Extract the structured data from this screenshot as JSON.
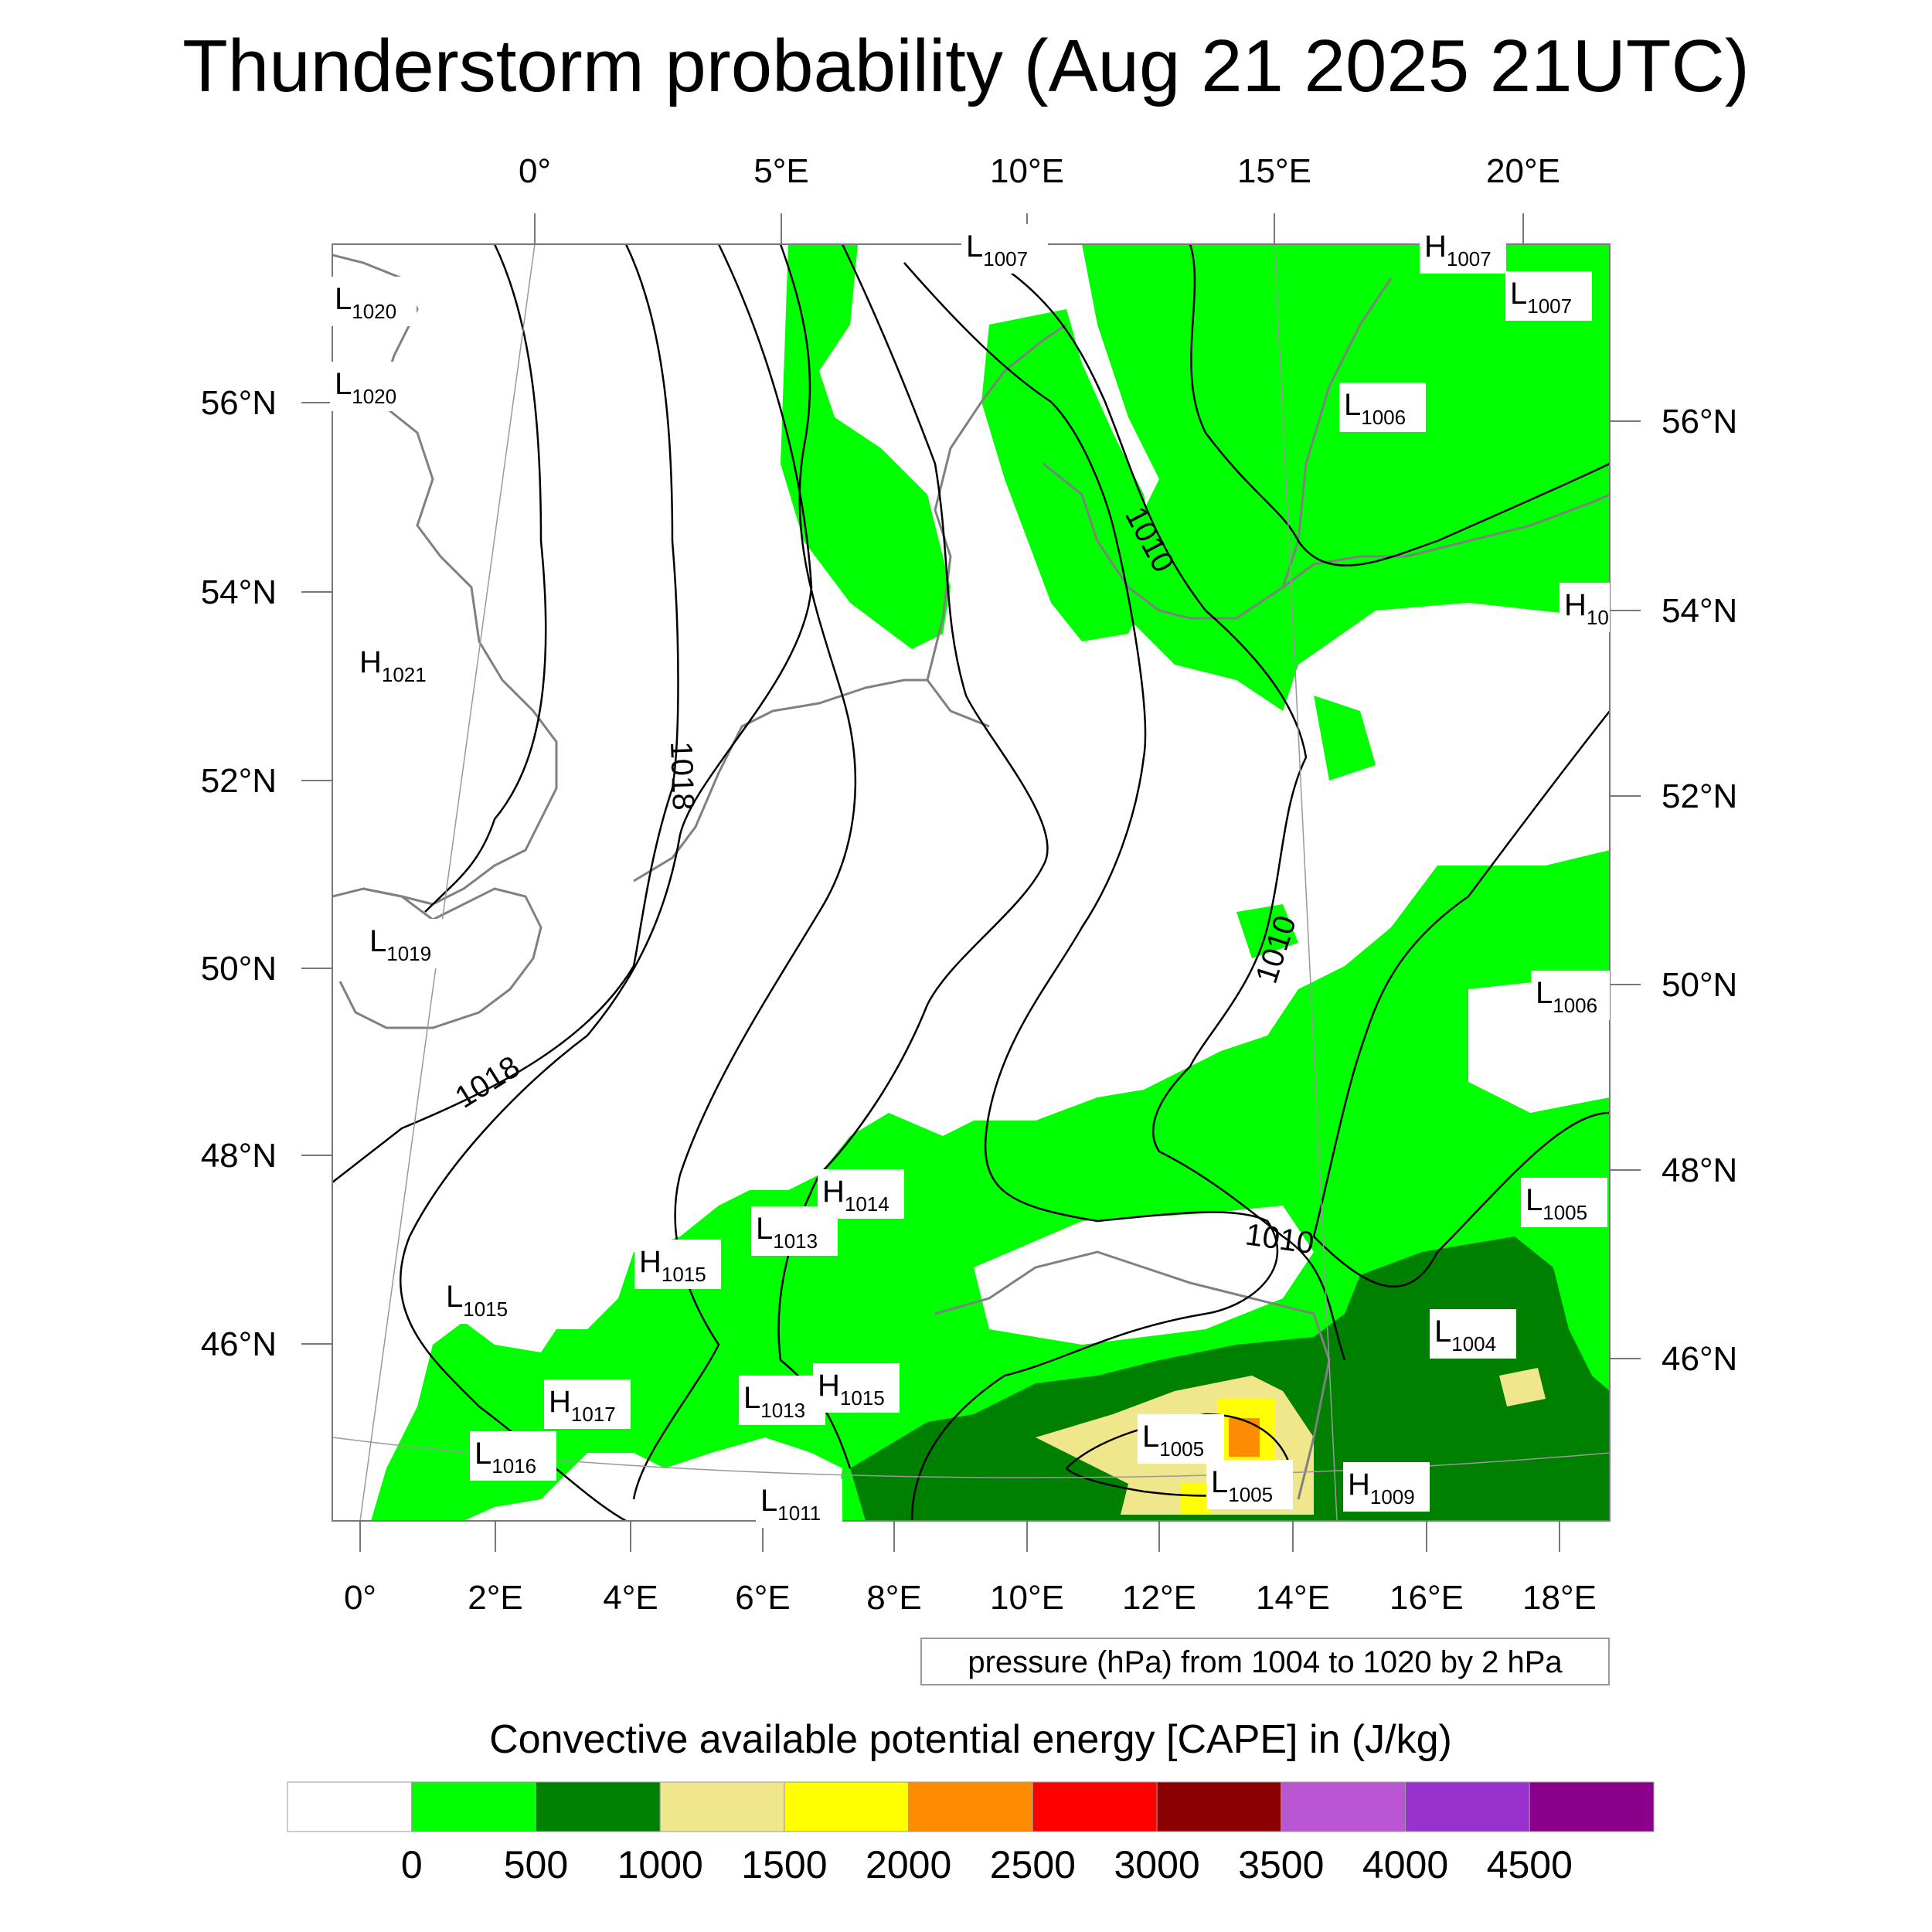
{
  "title": "Thunderstorm probability (Aug 21 2025 21UTC)",
  "top_lon_labels": [
    "0°",
    "5°E",
    "10°E",
    "15°E",
    "20°E"
  ],
  "bottom_lon_labels": [
    "0°",
    "2°E",
    "4°E",
    "6°E",
    "8°E",
    "10°E",
    "12°E",
    "14°E",
    "16°E",
    "18°E"
  ],
  "left_lat_labels": [
    "56°N",
    "54°N",
    "52°N",
    "50°N",
    "48°N",
    "46°N"
  ],
  "right_lat_labels": [
    "56°N",
    "54°N",
    "52°N",
    "50°N",
    "48°N",
    "46°N"
  ],
  "pressure_centers": [
    {
      "type": "L",
      "value": "1020"
    },
    {
      "type": "L",
      "value": "1020"
    },
    {
      "type": "H",
      "value": "1021"
    },
    {
      "type": "L",
      "value": "1019"
    },
    {
      "type": "L",
      "value": "1015"
    },
    {
      "type": "H",
      "value": "1017"
    },
    {
      "type": "L",
      "value": "1016"
    },
    {
      "type": "H",
      "value": "1015"
    },
    {
      "type": "L",
      "value": "1013"
    },
    {
      "type": "H",
      "value": "1014"
    },
    {
      "type": "L",
      "value": "1013"
    },
    {
      "type": "H",
      "value": "1015"
    },
    {
      "type": "L",
      "value": "1011"
    },
    {
      "type": "L",
      "value": "1007"
    },
    {
      "type": "H",
      "value": "1007"
    },
    {
      "type": "L",
      "value": "1007"
    },
    {
      "type": "L",
      "value": "1006"
    },
    {
      "type": "H",
      "value": "10"
    },
    {
      "type": "L",
      "value": "1006"
    },
    {
      "type": "L",
      "value": "1005"
    },
    {
      "type": "L",
      "value": "1004"
    },
    {
      "type": "L",
      "value": "1005"
    },
    {
      "type": "L",
      "value": "1005"
    },
    {
      "type": "H",
      "value": "1009"
    }
  ],
  "contour_labels": [
    "1018",
    "1018",
    "1010",
    "1010",
    "1010"
  ],
  "contour_info": "pressure (hPa) from 1004 to 1020 by 2 hPa",
  "colorbar": {
    "title": "Convective available potential energy [CAPE] in (J/kg)",
    "colors": [
      "#ffffff",
      "#00ff00",
      "#008000",
      "#f0e68c",
      "#ffff00",
      "#ff8c00",
      "#ff0000",
      "#8b0000",
      "#ba55d3",
      "#9932cc",
      "#8b008b"
    ],
    "labels": [
      "0",
      "500",
      "1000",
      "1500",
      "2000",
      "2500",
      "3000",
      "3500",
      "4000",
      "4500"
    ]
  }
}
